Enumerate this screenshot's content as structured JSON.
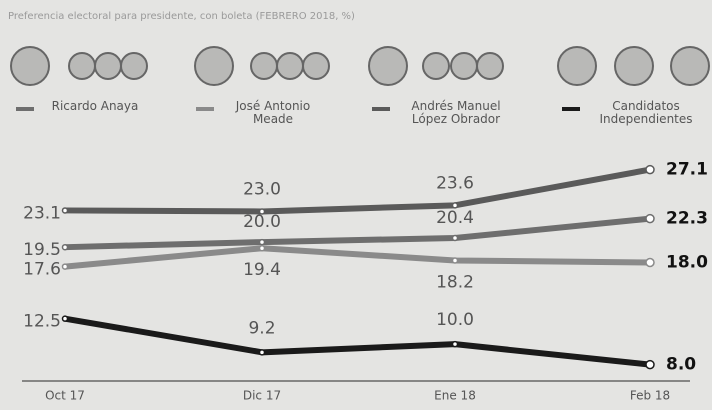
{
  "chart_data": {
    "type": "line",
    "title": "Preferencia electoral para presidente, con boleta (FEBRERO 2018, %)",
    "categories": [
      "Oct 17",
      "Dic 17",
      "Ene 18",
      "Feb 18"
    ],
    "ylim": [
      6,
      30
    ],
    "series": [
      {
        "name": "Ricardo Anaya",
        "color": "#6e6e6e",
        "values": [
          19.5,
          20,
          20.4,
          22.3
        ],
        "value_labels": [
          "19.5",
          "20.0",
          "20.4",
          "22.3"
        ]
      },
      {
        "name": "José Antonio Meade",
        "color": "#8a8a8a",
        "values": [
          17.6,
          19.4,
          18.2,
          18
        ],
        "value_labels": [
          "17.6",
          "19.4",
          "18.2",
          "18.0"
        ]
      },
      {
        "name": "Andrés Manuel López Obrador",
        "color": "#5a5a5a",
        "values": [
          23.1,
          23,
          23.6,
          27.1
        ],
        "value_labels": [
          "23.1",
          "23.0",
          "23.6",
          "27.1"
        ]
      },
      {
        "name": "Candidatos Independientes",
        "color": "#1a1a1a",
        "values": [
          12.5,
          9.2,
          10,
          8
        ],
        "value_labels": [
          "12.5",
          "9.2",
          "10.0",
          "8.0"
        ]
      }
    ]
  }
}
